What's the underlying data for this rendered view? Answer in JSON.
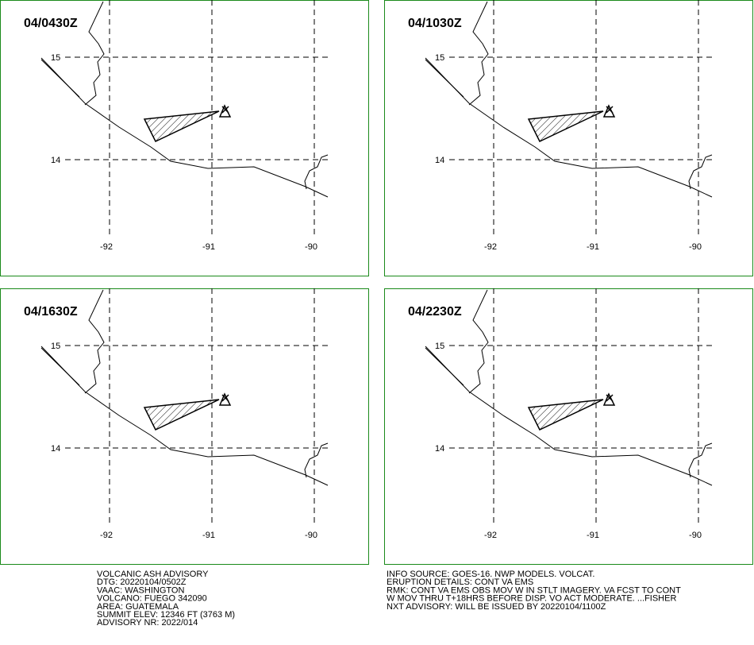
{
  "map": {
    "lat_ticks": [
      15,
      14
    ],
    "lon_ticks": [
      -92,
      -91,
      -90
    ]
  },
  "panels": [
    {
      "time": "04/0430Z"
    },
    {
      "time": "04/1030Z"
    },
    {
      "time": "04/1630Z"
    },
    {
      "time": "04/2230Z"
    }
  ],
  "advisory": {
    "left": [
      "VOLCANIC ASH ADVISORY",
      "DTG: 20220104/0502Z",
      "VAAC: WASHINGTON",
      "VOLCANO: FUEGO 342090",
      "AREA: GUATEMALA",
      "SUMMIT ELEV: 12346 FT (3763 M)",
      "ADVISORY NR: 2022/014"
    ],
    "right": [
      "INFO SOURCE: GOES-16. NWP MODELS. VOLCAT.",
      "ERUPTION DETAILS: CONT VA EMS",
      "RMK: CONT VA EMS OBS MOV W IN STLT IMAGERY. VA FCST TO CONT",
      "W MOV THRU T+18HRS BEFORE DISP. VO ACT MODERATE. ...FISHER",
      "NXT ADVISORY: WILL BE ISSUED BY 20220104/1100Z"
    ]
  }
}
